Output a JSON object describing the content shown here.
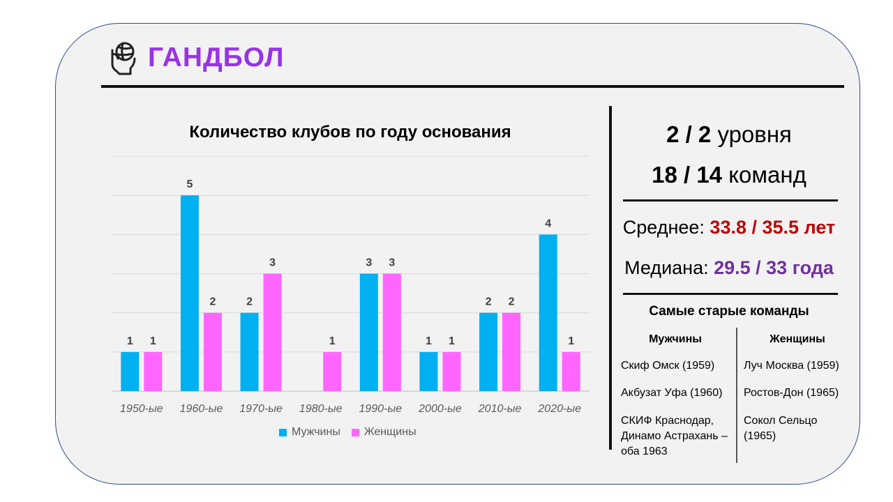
{
  "header": {
    "title": "ГАНДБОЛ",
    "icon": "handball-hand-icon",
    "title_color": "#9933e6"
  },
  "chart_data": {
    "type": "bar",
    "title": "Количество клубов по году основания",
    "categories": [
      "1950-ые",
      "1960-ые",
      "1970-ые",
      "1980-ые",
      "1990-ые",
      "2000-ые",
      "2010-ые",
      "2020-ые"
    ],
    "series": [
      {
        "name": "Мужчины",
        "values": [
          1,
          5,
          2,
          0,
          3,
          1,
          2,
          4
        ],
        "color": "#00b0f0"
      },
      {
        "name": "Женщины",
        "values": [
          1,
          2,
          3,
          1,
          3,
          1,
          2,
          1
        ],
        "color": "#ff66ff"
      }
    ],
    "ylim": [
      0,
      6
    ],
    "grid": true,
    "legend": "bottom",
    "xlabel": "",
    "ylabel": ""
  },
  "stats": {
    "levels_value": "2 / 2",
    "levels_label": "уровня",
    "teams_value": "18 / 14",
    "teams_label": "команд",
    "mean_label": "Среднее:",
    "mean_value": "33.8 / 35.5 лет",
    "mean_color": "#c00000",
    "median_label": "Медиана:",
    "median_value": "29.5 / 33 года",
    "median_color": "#7030a0"
  },
  "oldest": {
    "title": "Самые старые команды",
    "men_header": "Мужчины",
    "women_header": "Женщины",
    "men": [
      "Скиф Омск (1959)",
      "Акбузат Уфа (1960)",
      "СКИФ Краснодар, Динамо Астрахань – оба 1963"
    ],
    "women": [
      "Луч Москва (1959)",
      "Ростов-Дон (1965)",
      "Сокол Сельцо (1965)"
    ]
  }
}
